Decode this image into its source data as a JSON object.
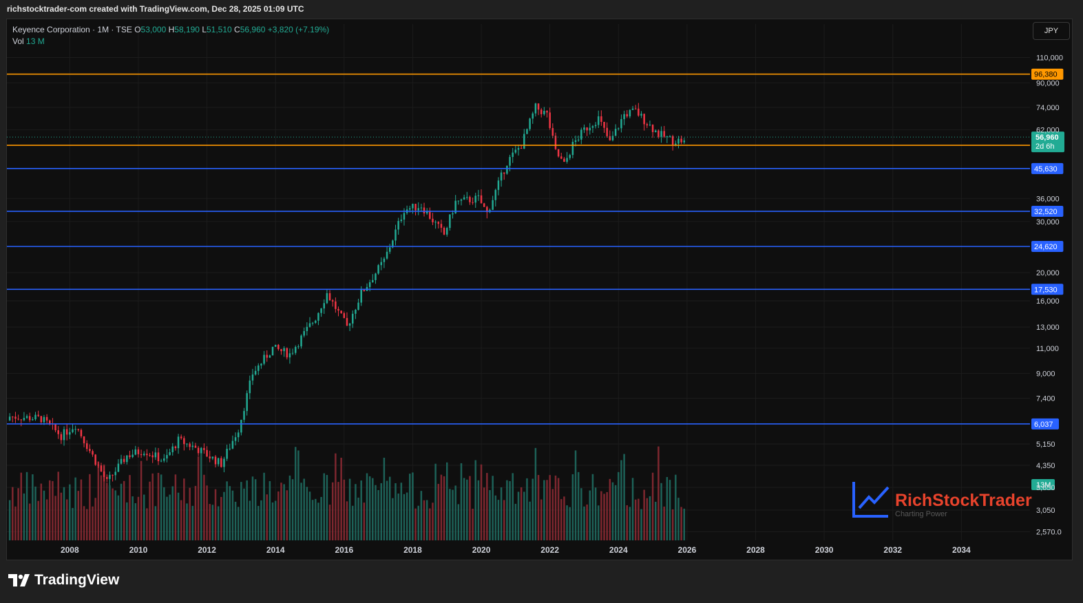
{
  "header": {
    "attribution": "richstocktrader-com created with TradingView.com, Dec 28, 2025 01:09 UTC"
  },
  "legend": {
    "symbol": "Keyence Corporation · 1M · TSE",
    "open_label": "O",
    "open": "53,000",
    "high_label": "H",
    "high": "58,190",
    "low_label": "L",
    "low": "51,510",
    "close_label": "C",
    "close": "56,960",
    "change": "+3,820 (+7.19%)",
    "vol_label": "Vol",
    "vol": "13 M"
  },
  "currency_button": "JPY",
  "watermark": {
    "brand": "RichStockTrader",
    "tagline": "Charting Power"
  },
  "footer": {
    "brand": "TradingView"
  },
  "colors": {
    "up": "#22ab94",
    "down": "#f23645",
    "support": "#2962ff",
    "resistance": "#ff9800",
    "background": "#0f0f0f"
  },
  "chart_data": {
    "type": "candlestick",
    "y_scale": "log",
    "ylim": [
      2400,
      125000
    ],
    "x_range": [
      "2006-03",
      "2036-01"
    ],
    "x_ticks": [
      "2008",
      "2010",
      "2012",
      "2014",
      "2016",
      "2018",
      "2020",
      "2022",
      "2024",
      "2026",
      "2028",
      "2030",
      "2032",
      "2034"
    ],
    "y_ticks": [
      "110,000",
      "90,000",
      "74,000",
      "62,000",
      "36,000",
      "30,000",
      "20,000",
      "16,000",
      "13,000",
      "11,000",
      "9,000",
      "7,400",
      "5,150",
      "4,350",
      "3,650",
      "3,050",
      "2,570.0"
    ],
    "horizontal_levels": [
      {
        "price": 96380,
        "label": "96,380",
        "color": "#ff9800"
      },
      {
        "price": 54860,
        "label": "54,860",
        "color": "#ff9800"
      },
      {
        "price": 45630,
        "label": "45,630",
        "color": "#2962ff"
      },
      {
        "price": 32520,
        "label": "32,520",
        "color": "#2962ff"
      },
      {
        "price": 24620,
        "label": "24,620",
        "color": "#2962ff"
      },
      {
        "price": 17530,
        "label": "17,530",
        "color": "#2962ff"
      },
      {
        "price": 6037,
        "label": "6,037",
        "color": "#2962ff"
      }
    ],
    "last_price": {
      "value": 56960,
      "label": "56,960",
      "countdown": "2d 6h"
    },
    "volume_label": "13M",
    "price_path": [
      [
        "2006-04",
        6400
      ],
      [
        "2007-03",
        6300
      ],
      [
        "2007-10",
        5500
      ],
      [
        "2008-03",
        6000
      ],
      [
        "2008-10",
        4500
      ],
      [
        "2009-02",
        3800
      ],
      [
        "2009-09",
        4700
      ],
      [
        "2010-03",
        4900
      ],
      [
        "2010-10",
        4500
      ],
      [
        "2011-03",
        5300
      ],
      [
        "2011-09",
        5000
      ],
      [
        "2012-06",
        4400
      ],
      [
        "2012-12",
        5800
      ],
      [
        "2013-05",
        9000
      ],
      [
        "2013-12",
        11000
      ],
      [
        "2014-06",
        10500
      ],
      [
        "2015-03",
        14000
      ],
      [
        "2015-07",
        17000
      ],
      [
        "2016-02",
        13000
      ],
      [
        "2016-07",
        17000
      ],
      [
        "2017-03",
        22000
      ],
      [
        "2017-10",
        33000
      ],
      [
        "2018-04",
        34000
      ],
      [
        "2018-12",
        27000
      ],
      [
        "2019-04",
        35000
      ],
      [
        "2019-12",
        36000
      ],
      [
        "2020-03",
        32000
      ],
      [
        "2020-10",
        48000
      ],
      [
        "2021-03",
        55000
      ],
      [
        "2021-08",
        74000
      ],
      [
        "2021-12",
        70000
      ],
      [
        "2022-03",
        52000
      ],
      [
        "2022-06",
        47000
      ],
      [
        "2022-09",
        55000
      ],
      [
        "2023-01",
        62000
      ],
      [
        "2023-06",
        68000
      ],
      [
        "2023-10",
        56000
      ],
      [
        "2024-03",
        70000
      ],
      [
        "2024-07",
        72000
      ],
      [
        "2024-10",
        67000
      ],
      [
        "2025-03",
        60000
      ],
      [
        "2025-08",
        57000
      ],
      [
        "2025-12",
        56960
      ]
    ]
  }
}
